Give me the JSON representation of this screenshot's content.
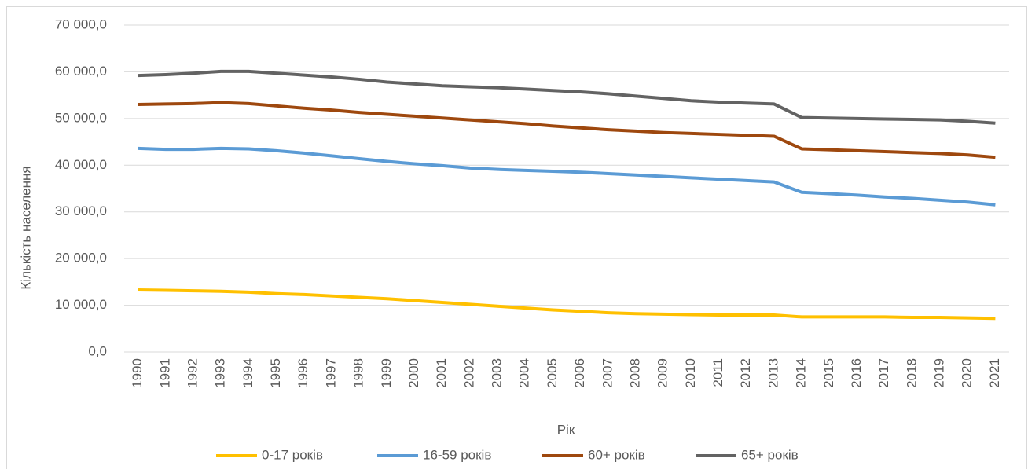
{
  "chart_data": {
    "type": "line",
    "x_label": "Рік",
    "y_label": "Кількість населення",
    "categories": [
      "1990",
      "1991",
      "1992",
      "1993",
      "1994",
      "1995",
      "1996",
      "1997",
      "1998",
      "1999",
      "2000",
      "2001",
      "2002",
      "2003",
      "2004",
      "2005",
      "2006",
      "2007",
      "2008",
      "2009",
      "2010",
      "2011",
      "2012",
      "2013",
      "2014",
      "2015",
      "2016",
      "2017",
      "2018",
      "2019",
      "2020",
      "2021"
    ],
    "series": [
      {
        "name": "0-17 років",
        "color": "#ffc000",
        "values": [
          13300,
          13200,
          13100,
          13000,
          12800,
          12500,
          12300,
          12000,
          11700,
          11400,
          11000,
          10600,
          10200,
          9800,
          9400,
          9000,
          8700,
          8400,
          8200,
          8100,
          8000,
          7900,
          7900,
          7900,
          7500,
          7500,
          7500,
          7500,
          7400,
          7400,
          7300,
          7200
        ]
      },
      {
        "name": "16-59 років",
        "color": "#5b9bd5",
        "values": [
          43600,
          43400,
          43400,
          43600,
          43500,
          43100,
          42600,
          42000,
          41400,
          40800,
          40300,
          39900,
          39400,
          39100,
          38900,
          38700,
          38500,
          38200,
          37900,
          37600,
          37300,
          37000,
          36700,
          36400,
          34200,
          33900,
          33600,
          33200,
          32900,
          32500,
          32100,
          31500
        ]
      },
      {
        "name": "60+ років",
        "color": "#9e480e",
        "values": [
          53000,
          53100,
          53200,
          53400,
          53200,
          52700,
          52200,
          51800,
          51300,
          50900,
          50500,
          50100,
          49700,
          49300,
          48900,
          48400,
          48000,
          47600,
          47300,
          47000,
          46800,
          46600,
          46400,
          46200,
          43500,
          43300,
          43100,
          42900,
          42700,
          42500,
          42200,
          41700
        ]
      },
      {
        "name": "65+ років",
        "color": "#636363",
        "values": [
          59200,
          59400,
          59700,
          60100,
          60100,
          59700,
          59300,
          58900,
          58400,
          57800,
          57400,
          57000,
          56800,
          56600,
          56300,
          56000,
          55700,
          55300,
          54800,
          54300,
          53800,
          53500,
          53300,
          53100,
          50200,
          50100,
          50000,
          49900,
          49800,
          49700,
          49400,
          49000
        ]
      }
    ],
    "ylim": [
      0,
      70000
    ],
    "yticks": [
      {
        "value": 0,
        "label": "0,0"
      },
      {
        "value": 10000,
        "label": "10 000,0"
      },
      {
        "value": 20000,
        "label": "20 000,0"
      },
      {
        "value": 30000,
        "label": "30 000,0"
      },
      {
        "value": 40000,
        "label": "40 000,0"
      },
      {
        "value": 50000,
        "label": "50 000,0"
      },
      {
        "value": 60000,
        "label": "60 000,0"
      },
      {
        "value": 70000,
        "label": "70 000,0"
      }
    ],
    "grid": true,
    "legend": "bottom"
  }
}
